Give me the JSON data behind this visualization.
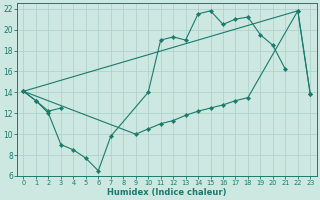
{
  "xlabel": "Humidex (Indice chaleur)",
  "bg_color": "#cce8e0",
  "line_color": "#1a7a6e",
  "grid_color": "#aacfc8",
  "xlim": [
    -0.5,
    23.5
  ],
  "ylim": [
    6,
    22.5
  ],
  "xticks": [
    0,
    1,
    2,
    3,
    4,
    5,
    6,
    7,
    8,
    9,
    10,
    11,
    12,
    13,
    14,
    15,
    16,
    17,
    18,
    19,
    20,
    21,
    22,
    23
  ],
  "yticks": [
    6,
    8,
    10,
    12,
    14,
    16,
    18,
    20,
    22
  ],
  "line1_x": [
    0,
    1,
    2,
    3,
    4,
    5,
    6,
    7,
    10,
    11,
    12,
    13,
    14,
    15,
    16,
    17,
    18,
    19,
    20,
    21
  ],
  "line1_y": [
    14.1,
    13.2,
    12.0,
    9.0,
    8.5,
    7.7,
    6.5,
    9.8,
    14.0,
    19.0,
    19.3,
    19.0,
    21.5,
    21.8,
    20.5,
    21.0,
    21.2,
    19.5,
    18.5,
    16.2
  ],
  "line2_x": [
    0,
    1,
    2,
    3,
    22,
    23
  ],
  "line2_y": [
    14.1,
    13.2,
    12.2,
    12.5,
    21.8,
    13.8
  ],
  "line3_x": [
    0,
    9,
    10,
    11,
    12,
    13,
    14,
    15,
    16,
    17,
    18,
    22,
    23
  ],
  "line3_y": [
    14.1,
    10.0,
    10.5,
    11.0,
    11.3,
    11.8,
    12.2,
    12.5,
    12.8,
    13.2,
    13.5,
    21.8,
    13.8
  ]
}
